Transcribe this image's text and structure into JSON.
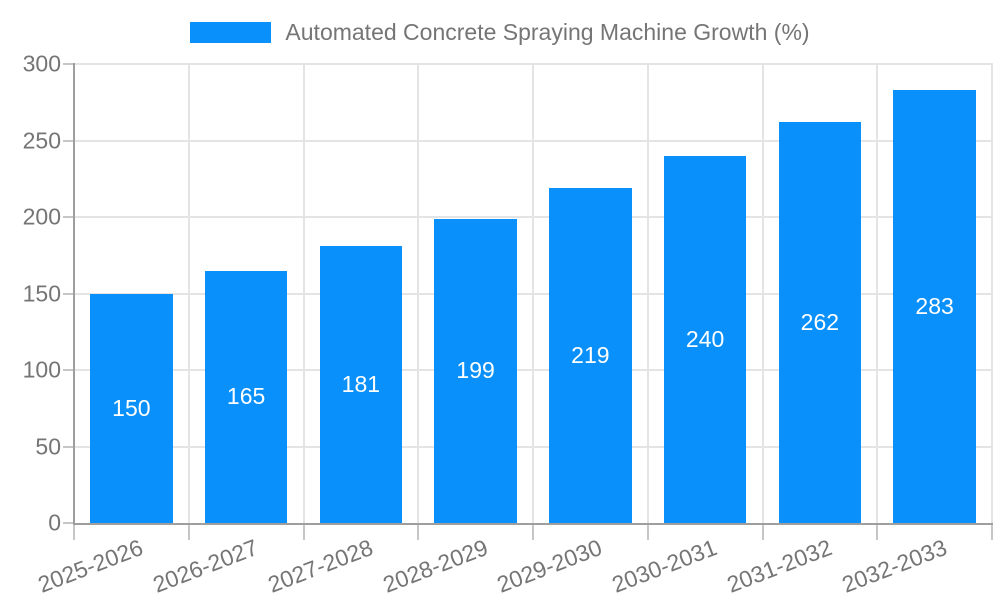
{
  "chart_data": {
    "type": "bar",
    "title": "Automated Concrete Spraying Machine Growth (%)",
    "categories": [
      "2025-2026",
      "2026-2027",
      "2027-2028",
      "2028-2029",
      "2029-2030",
      "2030-2031",
      "2031-2032",
      "2032-2033"
    ],
    "series": [
      {
        "name": "Automated Concrete Spraying Machine Growth (%)",
        "values": [
          150,
          165,
          181,
          199,
          219,
          240,
          262,
          283
        ]
      }
    ],
    "xlabel": "",
    "ylabel": "",
    "ylim": [
      0,
      300
    ],
    "ytick_step": 50,
    "yticks": [
      0,
      50,
      100,
      150,
      200,
      250,
      300
    ],
    "grid": true,
    "legend_position": "top",
    "x_label_rotation": -21,
    "bar_width_ratio": 0.72,
    "colors": {
      "bar": "#0A90FA",
      "value_label": "#ffffff",
      "axis": "#9e9e9e",
      "grid": "#e4e4e4",
      "tick": "#c6c6c6",
      "text": "#757575"
    }
  }
}
